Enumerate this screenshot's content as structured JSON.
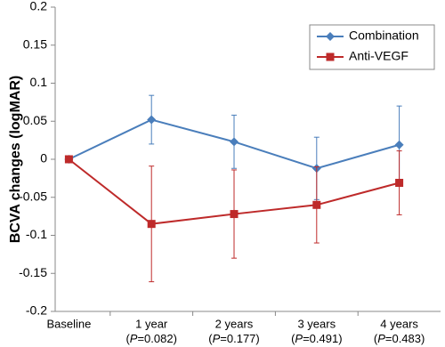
{
  "chart_data": {
    "type": "line",
    "ylabel": "BCVA changes (logMAR)",
    "categories": [
      "Baseline",
      "1 year",
      "2 years",
      "3 years",
      "4 years"
    ],
    "sublabels": [
      null,
      "(P=0.082)",
      "(P=0.177)",
      "(P=0.491)",
      "(P=0.483)"
    ],
    "series": [
      {
        "name": "Combination",
        "color": "#4a7ebb",
        "marker": "diamond",
        "values": [
          0,
          0.052,
          0.023,
          -0.012,
          0.019
        ],
        "errors": [
          0,
          0.032,
          0.035,
          0.041,
          0.051
        ]
      },
      {
        "name": "Anti-VEGF",
        "color": "#be2a2a",
        "marker": "square",
        "values": [
          0,
          -0.085,
          -0.072,
          -0.06,
          -0.031
        ],
        "errors": [
          0,
          0.076,
          0.058,
          0.05,
          0.042
        ]
      }
    ],
    "ylim": [
      -0.2,
      0.2
    ],
    "yticks": [
      -0.2,
      -0.15,
      -0.1,
      -0.05,
      0,
      0.05,
      0.1,
      0.15,
      0.2
    ],
    "legend": "upper right"
  }
}
